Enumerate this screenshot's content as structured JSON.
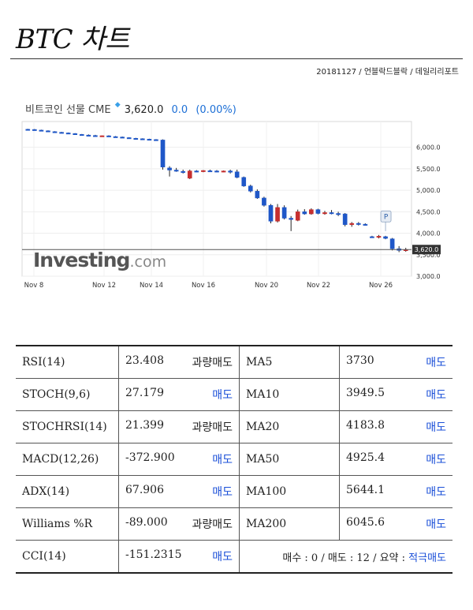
{
  "title": "BTC 차트",
  "byline": "20181127 / 언블락드블락 / 데일리리포트",
  "chart_header": {
    "name": "비트코인 선물 CME",
    "price": "3,620.0",
    "change": "0.0",
    "change_pct": "(0.00%)"
  },
  "watermark": {
    "brand": "Investing",
    "suffix": ".com"
  },
  "chart_data": {
    "type": "candlestick",
    "x_ticks": [
      "Nov 8",
      "Nov 12",
      "Nov 14",
      "Nov 16",
      "Nov 20",
      "Nov 22",
      "Nov 26"
    ],
    "y_ticks": [
      "6,000.0",
      "5,500.0",
      "5,000.0",
      "4,500.0",
      "4,000.0",
      "3,500.0",
      "3,000.0"
    ],
    "ylim": [
      3000,
      6600
    ],
    "last_price_label": "3,620.0",
    "last_price": 3620,
    "marker_label": "P",
    "colors": {
      "up": "#c62f2f",
      "down": "#1f57c8"
    },
    "candles": [
      {
        "o": 6420,
        "h": 6430,
        "l": 6410,
        "c": 6415
      },
      {
        "o": 6415,
        "h": 6425,
        "l": 6400,
        "c": 6405
      },
      {
        "o": 6400,
        "h": 6410,
        "l": 6385,
        "c": 6390
      },
      {
        "o": 6385,
        "h": 6395,
        "l": 6360,
        "c": 6370
      },
      {
        "o": 6365,
        "h": 6375,
        "l": 6340,
        "c": 6350
      },
      {
        "o": 6350,
        "h": 6360,
        "l": 6330,
        "c": 6340
      },
      {
        "o": 6335,
        "h": 6345,
        "l": 6310,
        "c": 6320
      },
      {
        "o": 6320,
        "h": 6330,
        "l": 6300,
        "c": 6305
      },
      {
        "o": 6300,
        "h": 6310,
        "l": 6280,
        "c": 6290
      },
      {
        "o": 6285,
        "h": 6300,
        "l": 6270,
        "c": 6280
      },
      {
        "o": 6275,
        "h": 6290,
        "l": 6255,
        "c": 6265
      },
      {
        "o": 6260,
        "h": 6275,
        "l": 6250,
        "c": 6270
      },
      {
        "o": 6268,
        "h": 6280,
        "l": 6250,
        "c": 6258
      },
      {
        "o": 6250,
        "h": 6262,
        "l": 6240,
        "c": 6245
      },
      {
        "o": 6240,
        "h": 6250,
        "l": 6220,
        "c": 6230
      },
      {
        "o": 6225,
        "h": 6235,
        "l": 6210,
        "c": 6215
      },
      {
        "o": 6210,
        "h": 6220,
        "l": 6200,
        "c": 6205
      },
      {
        "o": 6200,
        "h": 6210,
        "l": 6180,
        "c": 6190
      },
      {
        "o": 6190,
        "h": 6200,
        "l": 6160,
        "c": 6180
      },
      {
        "o": 6180,
        "h": 6190,
        "l": 6150,
        "c": 6160
      },
      {
        "o": 6170,
        "h": 6185,
        "l": 5480,
        "c": 5540
      },
      {
        "o": 5520,
        "h": 5560,
        "l": 5320,
        "c": 5470
      },
      {
        "o": 5470,
        "h": 5520,
        "l": 5430,
        "c": 5450
      },
      {
        "o": 5440,
        "h": 5480,
        "l": 5390,
        "c": 5420
      },
      {
        "o": 5280,
        "h": 5480,
        "l": 5260,
        "c": 5450
      },
      {
        "o": 5450,
        "h": 5470,
        "l": 5420,
        "c": 5440
      },
      {
        "o": 5440,
        "h": 5470,
        "l": 5420,
        "c": 5460
      },
      {
        "o": 5455,
        "h": 5480,
        "l": 5430,
        "c": 5450
      },
      {
        "o": 5450,
        "h": 5470,
        "l": 5420,
        "c": 5440
      },
      {
        "o": 5440,
        "h": 5460,
        "l": 5420,
        "c": 5450
      },
      {
        "o": 5450,
        "h": 5480,
        "l": 5390,
        "c": 5420
      },
      {
        "o": 5430,
        "h": 5480,
        "l": 5280,
        "c": 5300
      },
      {
        "o": 5300,
        "h": 5320,
        "l": 5080,
        "c": 5100
      },
      {
        "o": 5100,
        "h": 5130,
        "l": 4950,
        "c": 4980
      },
      {
        "o": 4980,
        "h": 5020,
        "l": 4800,
        "c": 4820
      },
      {
        "o": 4820,
        "h": 4850,
        "l": 4620,
        "c": 4650
      },
      {
        "o": 4650,
        "h": 4680,
        "l": 4230,
        "c": 4280
      },
      {
        "o": 4280,
        "h": 4680,
        "l": 4250,
        "c": 4600
      },
      {
        "o": 4600,
        "h": 4650,
        "l": 4320,
        "c": 4350
      },
      {
        "o": 4350,
        "h": 4400,
        "l": 4050,
        "c": 4320
      },
      {
        "o": 4300,
        "h": 4550,
        "l": 4280,
        "c": 4500
      },
      {
        "o": 4500,
        "h": 4560,
        "l": 4430,
        "c": 4450
      },
      {
        "o": 4450,
        "h": 4580,
        "l": 4430,
        "c": 4550
      },
      {
        "o": 4550,
        "h": 4570,
        "l": 4440,
        "c": 4460
      },
      {
        "o": 4460,
        "h": 4520,
        "l": 4430,
        "c": 4480
      },
      {
        "o": 4480,
        "h": 4540,
        "l": 4440,
        "c": 4460
      },
      {
        "o": 4460,
        "h": 4500,
        "l": 4400,
        "c": 4450
      },
      {
        "o": 4450,
        "h": 4470,
        "l": 4160,
        "c": 4200
      },
      {
        "o": 4200,
        "h": 4260,
        "l": 4150,
        "c": 4230
      },
      {
        "o": 4230,
        "h": 4260,
        "l": 4180,
        "c": 4210
      },
      {
        "o": 4210,
        "h": 4230,
        "l": 4180,
        "c": 4200
      },
      {
        "o": 3920,
        "h": 3940,
        "l": 3900,
        "c": 3910
      },
      {
        "o": 3910,
        "h": 3960,
        "l": 3880,
        "c": 3930
      },
      {
        "o": 3920,
        "h": 3940,
        "l": 3860,
        "c": 3880
      },
      {
        "o": 3870,
        "h": 3890,
        "l": 3600,
        "c": 3640
      },
      {
        "o": 3640,
        "h": 3700,
        "l": 3560,
        "c": 3600
      },
      {
        "o": 3600,
        "h": 3660,
        "l": 3570,
        "c": 3620
      }
    ]
  },
  "indicators": [
    {
      "name": "RSI(14)",
      "value": "23.408",
      "signal": "과량매도",
      "ma_name": "MA5",
      "ma_value": "3730",
      "ma_signal": "매도"
    },
    {
      "name": "STOCH(9,6)",
      "value": "27.179",
      "signal": "매도",
      "ma_name": "MA10",
      "ma_value": "3949.5",
      "ma_signal": "매도"
    },
    {
      "name": "STOCHRSI(14)",
      "value": "21.399",
      "signal": "과량매도",
      "ma_name": "MA20",
      "ma_value": "4183.8",
      "ma_signal": "매도"
    },
    {
      "name": "MACD(12,26)",
      "value": "-372.900",
      "signal": "매도",
      "ma_name": "MA50",
      "ma_value": "4925.4",
      "ma_signal": "매도"
    },
    {
      "name": "ADX(14)",
      "value": "67.906",
      "signal": "매도",
      "ma_name": "MA100",
      "ma_value": "5644.1",
      "ma_signal": "매도"
    },
    {
      "name": "Williams %R",
      "value": "-89.000",
      "signal": "과량매도",
      "ma_name": "MA200",
      "ma_value": "6045.6",
      "ma_signal": "매도"
    }
  ],
  "last_row": {
    "name": "CCI(14)",
    "value": "-151.2315",
    "signal": "매도",
    "summary_text": "매수 : 0 / 매도 : 12 / 요약 : ",
    "summary_signal": "적극매도"
  }
}
